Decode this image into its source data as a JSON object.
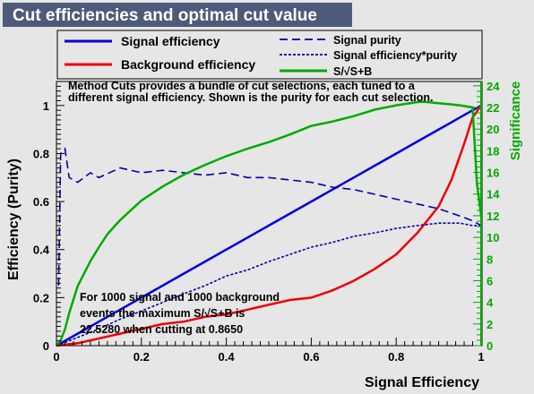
{
  "chart_data": {
    "type": "line",
    "title": "Cut efficiencies and optimal cut value",
    "xlabel": "Signal Efficiency",
    "ylabel": "Efficiency (Purity)",
    "y2label": "Significance",
    "xlim": [
      0,
      1
    ],
    "ylim": [
      0,
      1.1
    ],
    "y2lim": [
      0,
      24.4
    ],
    "x_ticks": [
      "0",
      "0.2",
      "0.4",
      "0.6",
      "0.8",
      "1"
    ],
    "y_ticks": [
      "0",
      "0.2",
      "0.4",
      "0.6",
      "0.8",
      "1"
    ],
    "y2_ticks": [
      "0",
      "2",
      "4",
      "6",
      "8",
      "10",
      "12",
      "14",
      "16",
      "18",
      "20",
      "22",
      "24"
    ],
    "legend": [
      {
        "label": "Signal efficiency",
        "color": "#0000dd",
        "style": "solid"
      },
      {
        "label": "Background efficiency",
        "color": "#ee0000",
        "style": "solid"
      },
      {
        "label": "Signal purity",
        "color": "#0000aa",
        "style": "dashed"
      },
      {
        "label": "Signal efficiency*purity",
        "color": "#0000aa",
        "style": "dotted"
      },
      {
        "label": "S/√S+B",
        "color": "#00aa00",
        "style": "solid"
      }
    ],
    "description_lines": [
      "Method Cuts provides a bundle of cut selections, each tuned to a",
      "different signal efficiency. Shown is the purity for each cut selection."
    ],
    "annotation_lines": [
      "For 1000 signal and 1000 background",
      "events the maximum S/√S+B is",
      "22.5280 when cutting at 0.8650"
    ],
    "series": [
      {
        "name": "Signal efficiency",
        "color": "#0000dd",
        "axis": "left",
        "x": [
          0,
          0.05,
          0.1,
          0.15,
          0.2,
          0.25,
          0.3,
          0.35,
          0.4,
          0.45,
          0.5,
          0.55,
          0.6,
          0.65,
          0.7,
          0.75,
          0.8,
          0.85,
          0.9,
          0.95,
          0.98,
          1.0
        ],
        "y": [
          0,
          0.05,
          0.1,
          0.15,
          0.2,
          0.25,
          0.3,
          0.35,
          0.4,
          0.45,
          0.5,
          0.55,
          0.6,
          0.65,
          0.7,
          0.75,
          0.8,
          0.85,
          0.9,
          0.95,
          0.98,
          1.0
        ]
      },
      {
        "name": "Background efficiency",
        "color": "#ee0000",
        "axis": "left",
        "x": [
          0,
          0.05,
          0.1,
          0.15,
          0.2,
          0.25,
          0.3,
          0.35,
          0.4,
          0.45,
          0.5,
          0.55,
          0.6,
          0.65,
          0.7,
          0.75,
          0.8,
          0.85,
          0.9,
          0.93,
          0.96,
          0.98,
          1.0
        ],
        "y": [
          0,
          0.01,
          0.03,
          0.05,
          0.07,
          0.09,
          0.1,
          0.12,
          0.13,
          0.15,
          0.17,
          0.19,
          0.2,
          0.23,
          0.27,
          0.32,
          0.38,
          0.47,
          0.58,
          0.69,
          0.84,
          0.95,
          1.0
        ]
      },
      {
        "name": "Signal purity",
        "color": "#0000aa",
        "axis": "left",
        "x": [
          0.005,
          0.01,
          0.02,
          0.03,
          0.05,
          0.08,
          0.1,
          0.15,
          0.2,
          0.25,
          0.3,
          0.35,
          0.4,
          0.45,
          0.5,
          0.55,
          0.6,
          0.65,
          0.7,
          0.75,
          0.8,
          0.85,
          0.9,
          0.95,
          0.98,
          1.0
        ],
        "y": [
          0.25,
          0.8,
          0.82,
          0.7,
          0.68,
          0.72,
          0.7,
          0.74,
          0.72,
          0.73,
          0.72,
          0.71,
          0.72,
          0.7,
          0.7,
          0.69,
          0.68,
          0.66,
          0.65,
          0.63,
          0.61,
          0.59,
          0.57,
          0.54,
          0.52,
          0.5
        ]
      },
      {
        "name": "Signal efficiency*purity",
        "color": "#0000aa",
        "axis": "left",
        "x": [
          0,
          0.05,
          0.1,
          0.15,
          0.2,
          0.25,
          0.3,
          0.35,
          0.4,
          0.45,
          0.5,
          0.55,
          0.6,
          0.65,
          0.7,
          0.75,
          0.8,
          0.85,
          0.9,
          0.95,
          0.98,
          1.0
        ],
        "y": [
          0,
          0.034,
          0.07,
          0.11,
          0.144,
          0.18,
          0.216,
          0.25,
          0.29,
          0.315,
          0.35,
          0.38,
          0.41,
          0.43,
          0.455,
          0.47,
          0.488,
          0.5,
          0.51,
          0.51,
          0.5,
          0.5
        ]
      },
      {
        "name": "S/√S+B",
        "color": "#00aa00",
        "axis": "right",
        "x": [
          0,
          0.01,
          0.02,
          0.03,
          0.05,
          0.08,
          0.1,
          0.12,
          0.15,
          0.2,
          0.25,
          0.3,
          0.35,
          0.4,
          0.45,
          0.5,
          0.55,
          0.6,
          0.65,
          0.7,
          0.75,
          0.8,
          0.85,
          0.865,
          0.9,
          0.95,
          0.98,
          0.99,
          1.0
        ],
        "y": [
          0,
          0.5,
          1.5,
          3.0,
          5.5,
          7.8,
          9.1,
          10.3,
          11.6,
          13.4,
          14.7,
          15.8,
          16.7,
          17.5,
          18.2,
          18.8,
          19.5,
          20.3,
          20.7,
          21.2,
          21.8,
          22.2,
          22.5,
          22.528,
          22.4,
          22.2,
          22.0,
          15.0,
          12.0
        ]
      }
    ]
  }
}
